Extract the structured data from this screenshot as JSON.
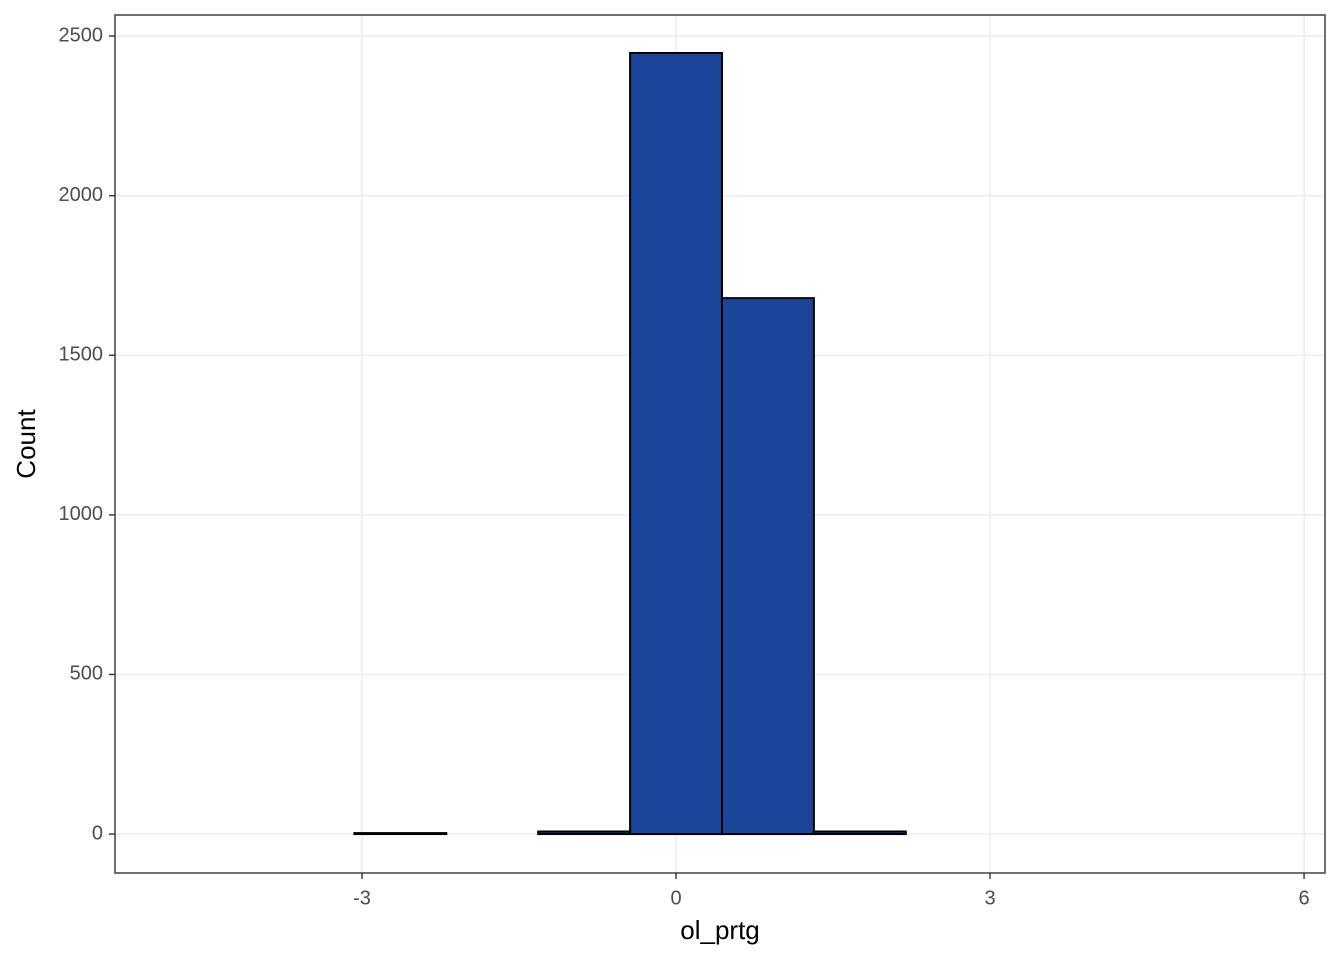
{
  "chart_data": {
    "type": "histogram",
    "x_label": "ol_prtg",
    "y_label": "Count",
    "bins": [
      -4.829,
      -3.951,
      -3.073,
      -2.195,
      -1.317,
      -0.439,
      0.439,
      1.317,
      2.195,
      3.073,
      3.951,
      4.829,
      5.707
    ],
    "values": [
      0,
      0,
      3,
      0,
      8,
      2447,
      1679,
      8,
      0,
      0,
      0,
      0
    ],
    "color": "#1a4599",
    "edge_color": "#000000",
    "xlim": [
      -5.36,
      6.2
    ],
    "ylim": [
      -122,
      2566
    ],
    "xticks": [
      -3,
      0,
      3,
      6
    ],
    "yticks": [
      0,
      500,
      1000,
      1500,
      2000,
      2500
    ],
    "grid": true
  }
}
